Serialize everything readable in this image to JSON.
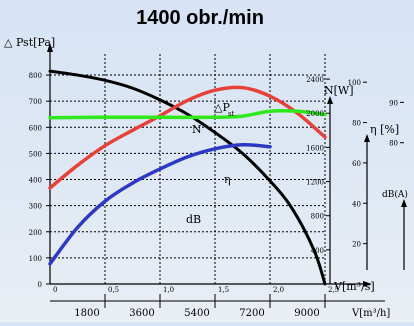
{
  "chart_data": {
    "type": "line",
    "title": "1400 obr./min",
    "x_axis": {
      "label": "V[m³/s]",
      "ticks": [
        "0",
        "0,5",
        "1,0",
        "1,5",
        "2,0",
        "2,5"
      ],
      "range": [
        0,
        2.5
      ]
    },
    "x_axis_secondary": {
      "label": "V[m³/h]",
      "ticks": [
        "1800",
        "3600",
        "5400",
        "7200",
        "9000"
      ],
      "values": [
        1800,
        3600,
        5400,
        7200,
        9000
      ],
      "range": [
        0,
        9000
      ]
    },
    "y_axis_left": {
      "label": "△ Pst[Pa]",
      "ticks": [
        "0",
        "100",
        "200",
        "300",
        "400",
        "500",
        "600",
        "700",
        "800"
      ],
      "range": [
        0,
        850
      ]
    },
    "y_axis_power": {
      "label": "N[W]",
      "ticks": [
        "400",
        "800",
        "1200",
        "1600",
        "2000",
        "2400"
      ],
      "range": [
        0,
        2600
      ]
    },
    "y_axis_efficiency": {
      "label": "η [%]",
      "ticks": [
        "20",
        "40",
        "60",
        "80",
        "100"
      ],
      "range": [
        0,
        110
      ]
    },
    "y_axis_sound": {
      "label": "dB(A)",
      "ticks": [
        "80",
        "90"
      ],
      "range": [
        45,
        100
      ]
    },
    "series": [
      {
        "name": "ΔPst",
        "axis": "pressure",
        "color": "#000000",
        "x": [
          0,
          0.25,
          0.5,
          0.75,
          1.0,
          1.25,
          1.5,
          1.75,
          2.0,
          2.2,
          2.4,
          2.5
        ],
        "y": [
          815,
          800,
          780,
          750,
          705,
          650,
          580,
          500,
          395,
          290,
          130,
          0
        ]
      },
      {
        "name": "N",
        "axis": "power",
        "color": "#e8413a",
        "x": [
          0,
          0.25,
          0.5,
          0.75,
          1.0,
          1.25,
          1.5,
          1.75,
          2.0,
          2.25,
          2.5
        ],
        "y": [
          1125,
          1390,
          1620,
          1800,
          1970,
          2150,
          2270,
          2300,
          2200,
          2000,
          1720
        ]
      },
      {
        "name": "η",
        "axis": "efficiency",
        "color": "#2d39c4",
        "x": [
          0,
          0.25,
          0.5,
          0.75,
          1.0,
          1.25,
          1.5,
          1.75,
          2.0
        ],
        "y": [
          10,
          28,
          41,
          50,
          57,
          63,
          67,
          69,
          68
        ]
      },
      {
        "name": "dB",
        "axis": "sound",
        "color": "#2ee81c",
        "x": [
          0,
          0.5,
          1.0,
          1.5,
          1.75,
          2.0,
          2.25,
          2.5
        ],
        "y": [
          86.2,
          86.3,
          86.3,
          86.3,
          86.6,
          87.8,
          87.8,
          87.0
        ]
      }
    ],
    "curve_labels": [
      "N",
      "η",
      "dB"
    ],
    "pressure_label": "△P",
    "pressure_label_subscript": "st",
    "grid": true,
    "legend": "none"
  }
}
